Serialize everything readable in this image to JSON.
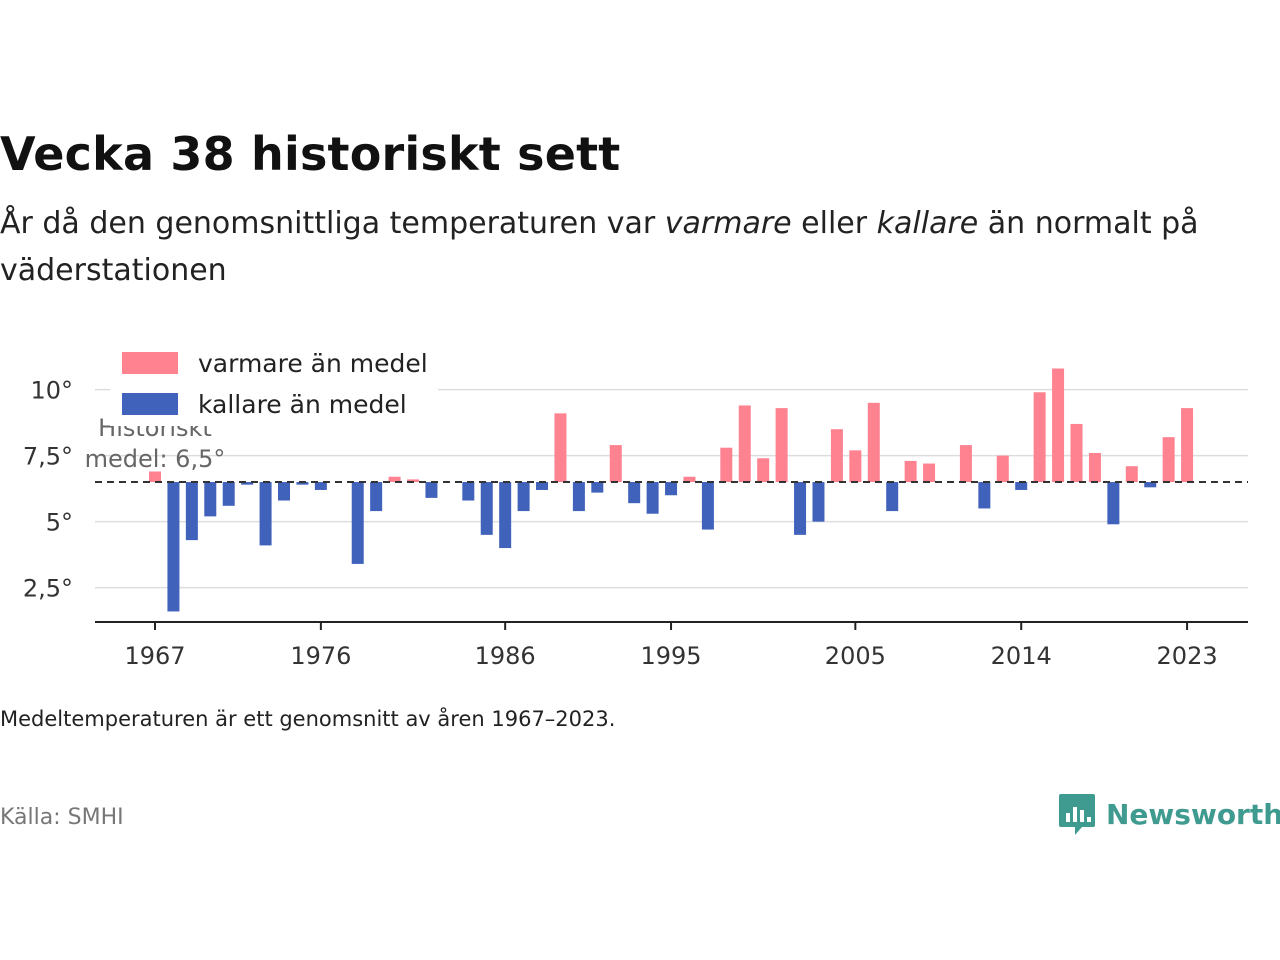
{
  "title": "Vecka 38 historiskt sett",
  "subtitle": {
    "part1": "År då den genomsnittliga temperaturen var ",
    "em1": "varmare",
    "part2": " eller ",
    "em2": "kallare",
    "part3": " än normalt på väderstationen"
  },
  "note": "Medeltemperaturen är ett genomsnitt av åren 1967–2023.",
  "source": "Källa: SMHI",
  "brand": "Newsworthy",
  "colors": {
    "warm": "#ff8291",
    "cold": "#4062bb",
    "brand": "#3f9a8f"
  },
  "chart_data": {
    "type": "bar",
    "ylim": [
      1.2,
      11.5
    ],
    "baseline": 6.5,
    "yticks": [
      2.5,
      5,
      7.5,
      10
    ],
    "ytick_labels": [
      "2,5°",
      "5°",
      "7,5°",
      "10°"
    ],
    "xticks": [
      1967,
      1976,
      1986,
      1995,
      2005,
      2014,
      2023
    ],
    "grid": true,
    "legend": {
      "placement": "top-left",
      "warm": "varmare än medel",
      "cold": "kallare än medel"
    },
    "baseline_label": [
      "Historiskt",
      "medel: 6,5°"
    ],
    "x": [
      1967,
      1968,
      1969,
      1970,
      1971,
      1972,
      1973,
      1974,
      1975,
      1976,
      1977,
      1978,
      1979,
      1980,
      1981,
      1982,
      1983,
      1984,
      1985,
      1986,
      1987,
      1988,
      1989,
      1990,
      1991,
      1992,
      1993,
      1994,
      1995,
      1996,
      1997,
      1998,
      1999,
      2000,
      2001,
      2002,
      2003,
      2004,
      2005,
      2006,
      2007,
      2008,
      2009,
      2010,
      2011,
      2012,
      2013,
      2014,
      2015,
      2016,
      2017,
      2018,
      2019,
      2020,
      2021,
      2022,
      2023
    ],
    "values": [
      6.9,
      1.6,
      4.3,
      5.2,
      5.6,
      6.4,
      4.1,
      5.8,
      6.4,
      6.2,
      null,
      3.4,
      5.4,
      6.7,
      6.6,
      5.9,
      null,
      5.8,
      4.5,
      4.0,
      5.4,
      6.2,
      9.1,
      5.4,
      6.1,
      7.9,
      5.7,
      5.3,
      6.0,
      6.7,
      4.7,
      7.8,
      9.4,
      7.4,
      9.3,
      4.5,
      5.0,
      8.5,
      7.7,
      9.5,
      5.4,
      7.3,
      7.2,
      null,
      7.9,
      5.5,
      7.5,
      6.2,
      9.9,
      10.8,
      8.7,
      7.6,
      4.9,
      7.1,
      6.3,
      8.2,
      9.3
    ]
  }
}
